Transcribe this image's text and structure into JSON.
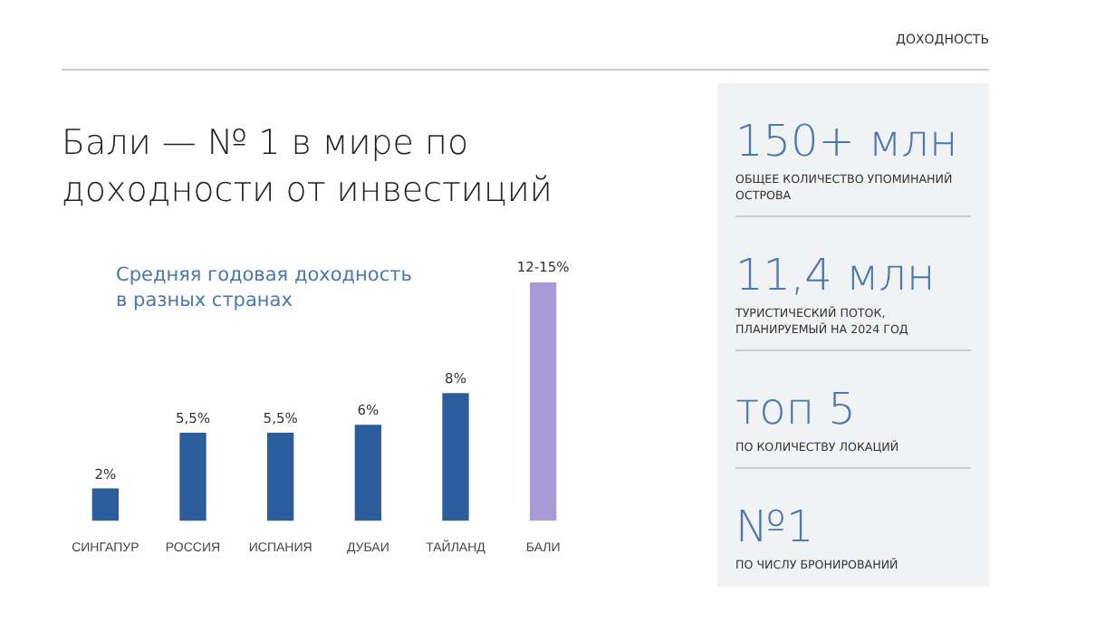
{
  "chart_data": {
    "type": "bar",
    "title": "Бали — № 1 в мире по доходности от инвестиций",
    "subtitle": "Средняя годовая доходность в разных странах",
    "categories": [
      "СИНГАПУР",
      "РОССИЯ",
      "ИСПАНИЯ",
      "ДУБАИ",
      "ТАЙЛАНД",
      "БАЛИ"
    ],
    "values": [
      2,
      5.5,
      5.5,
      6,
      8,
      15
    ],
    "colors": [
      "#2b5c9c",
      "#2b5c9c",
      "#2b5c9c",
      "#2b5c9c",
      "#2b5c9c",
      "#a99bd8"
    ],
    "value_labels": [
      "2%",
      "5,5%",
      "5,5%",
      "6%",
      "8%",
      null
    ],
    "annotations": [
      {
        "text": "12-15%",
        "x": "БАЛИ",
        "y": 15
      },
      "ДОХОДНОСТЬ",
      "150+ млн",
      "ОБЩЕЕ КОЛИЧЕСТВО УПОМИНАНИЙ ОСТРОВА",
      "11,4 млн",
      "ТУРИСТИЧЕСКИЙ ПОТОК, ПЛАНИРУЕМЫЙ НА 2024 ГОД",
      "топ 5",
      "ПО КОЛИЧЕСТВУ ЛОКАЦИЙ",
      "№1",
      "ПО ЧИСЛУ БРОНИРОВАНИЙ"
    ]
  }
}
